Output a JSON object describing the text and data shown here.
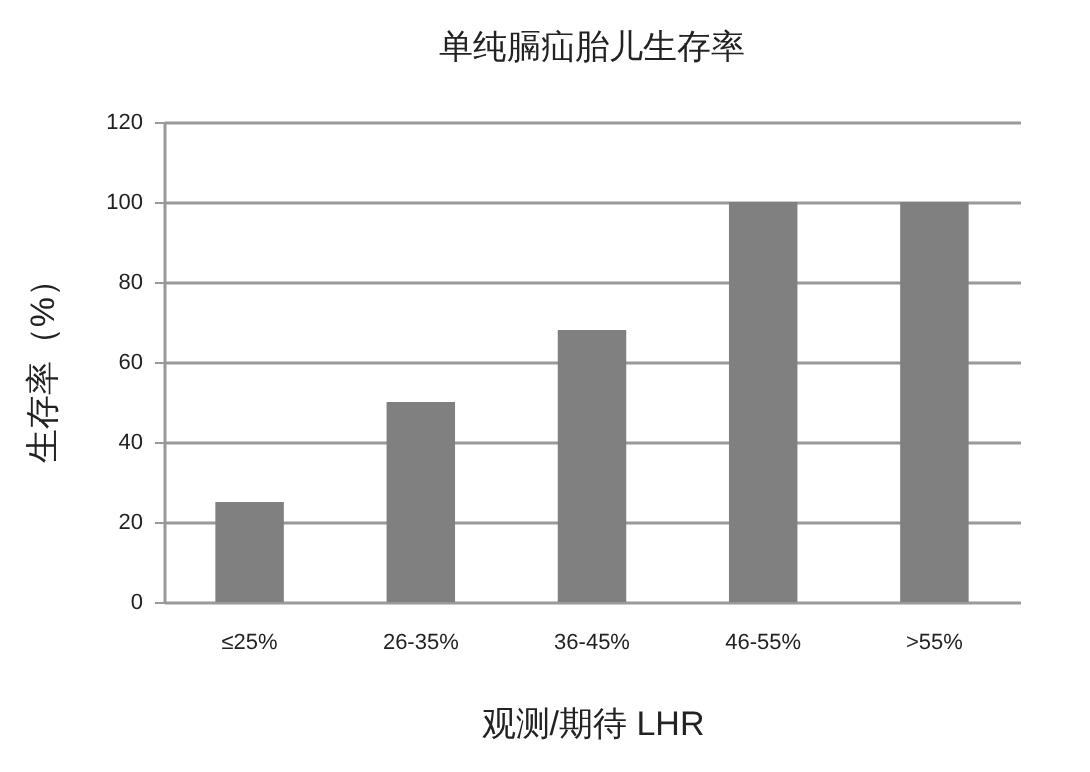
{
  "chart_data": {
    "type": "bar",
    "title": "单纯膈疝胎儿生存率",
    "xlabel": "观测/期待 LHR",
    "ylabel": "生存率（%）",
    "categories": [
      "≤25%",
      "26-35%",
      "36-45%",
      "46-55%",
      ">55%"
    ],
    "values": [
      25,
      50,
      68,
      100,
      100
    ],
    "color": "#808080",
    "ylim": [
      0,
      120
    ],
    "yticks": [
      0,
      20,
      40,
      60,
      80,
      100,
      120
    ],
    "grid": "y"
  }
}
